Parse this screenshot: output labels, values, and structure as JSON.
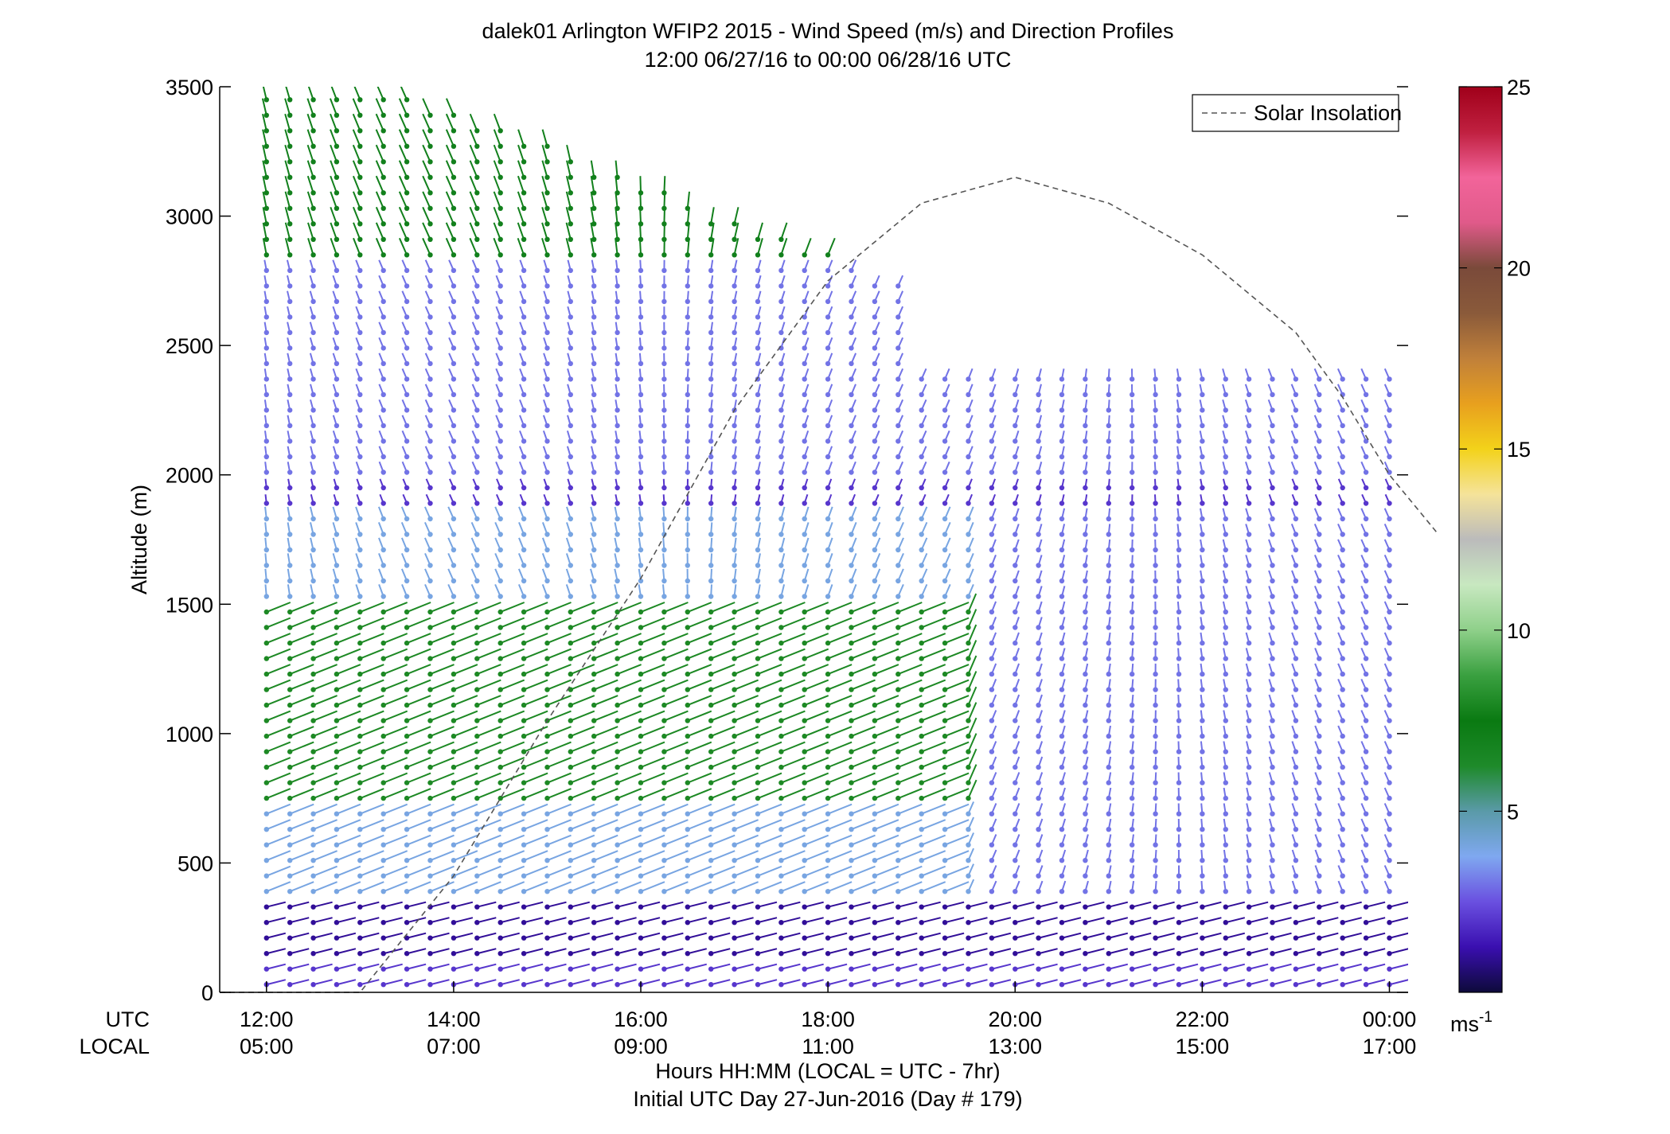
{
  "chart_data": {
    "type": "scatter",
    "title": "dalek01 Arlington WFIP2 2015 - Wind Speed (m/s) and Direction Profiles",
    "subtitle": "12:00 06/27/16 to 00:00 06/28/16  UTC",
    "ylabel": "Altitude (m)",
    "xlabel": "Hours HH:MM  (LOCAL = UTC - 7hr)",
    "xlabel2": "Initial UTC Day 27-Jun-2016 (Day # 179)",
    "x_row_labels": [
      "UTC",
      "LOCAL"
    ],
    "xlim": [
      11.5,
      24.2
    ],
    "ylim": [
      0,
      3500
    ],
    "x_ticks": [
      12,
      14,
      16,
      18,
      20,
      22,
      24
    ],
    "x_tick_labels_utc": [
      "12:00",
      "14:00",
      "16:00",
      "18:00",
      "20:00",
      "22:00",
      "00:00"
    ],
    "x_tick_labels_local": [
      "05:00",
      "07:00",
      "09:00",
      "11:00",
      "13:00",
      "15:00",
      "17:00"
    ],
    "y_ticks": [
      0,
      500,
      1000,
      1500,
      2000,
      2500,
      3000,
      3500
    ],
    "y_tick_labels": [
      "0",
      "500",
      "1000",
      "1500",
      "2000",
      "2500",
      "3000",
      "3500"
    ],
    "legend": {
      "label": "Solar Insolation",
      "position": "top-right"
    },
    "colorbar": {
      "range": [
        0,
        25
      ],
      "ticks": [
        5,
        10,
        15,
        20,
        25
      ],
      "tick_labels": [
        "5",
        "10",
        "15",
        "20",
        "25"
      ],
      "unit_label": "ms",
      "unit_superscript": "-1",
      "colors": [
        "#0d0a3a",
        "#3a0fb0",
        "#6a50e0",
        "#7fa8f0",
        "#5a9aa8",
        "#1e8a2a",
        "#0a7a12",
        "#3aa040",
        "#8fd08a",
        "#c8e8c0",
        "#bbbbbb",
        "#f5e39a",
        "#f3d21a",
        "#e8a01e",
        "#c0803a",
        "#8a5a3a",
        "#7a4a3a",
        "#e05a8a",
        "#f2649a",
        "#c02040",
        "#a0001a"
      ]
    },
    "solar_insolation": {
      "x": [
        11.5,
        12,
        13,
        14,
        15,
        16,
        17,
        18,
        19,
        20,
        21,
        22,
        23,
        23.5,
        24,
        24.5
      ],
      "y": [
        0,
        0,
        0,
        450,
        1050,
        1600,
        2250,
        2750,
        3050,
        3150,
        3050,
        2850,
        2550,
        2300,
        2000,
        1780
      ]
    },
    "profiles": {
      "time_start": 12.0,
      "time_end": 24.05,
      "time_step": 0.25,
      "alt_start": 30,
      "alt_end": 3480,
      "alt_step": 60,
      "speed_ms_regions": [
        {
          "from_alt": 30,
          "to_alt": 150,
          "speed": 2
        },
        {
          "from_alt": 150,
          "to_alt": 350,
          "speed": 1
        },
        {
          "from_alt": 350,
          "to_alt": 700,
          "speed": 4
        },
        {
          "from_alt": 700,
          "to_alt": 1500,
          "speed": 8
        },
        {
          "from_alt": 1500,
          "to_alt": 1850,
          "speed": 4
        },
        {
          "from_alt": 1850,
          "to_alt": 2000,
          "speed": 2
        },
        {
          "from_alt": 2000,
          "to_alt": 2800,
          "speed": 3
        },
        {
          "from_alt": 2800,
          "to_alt": 3500,
          "speed": 7
        }
      ],
      "afternoon_speed_ms": 2,
      "afternoon_start": 19.5
    }
  }
}
